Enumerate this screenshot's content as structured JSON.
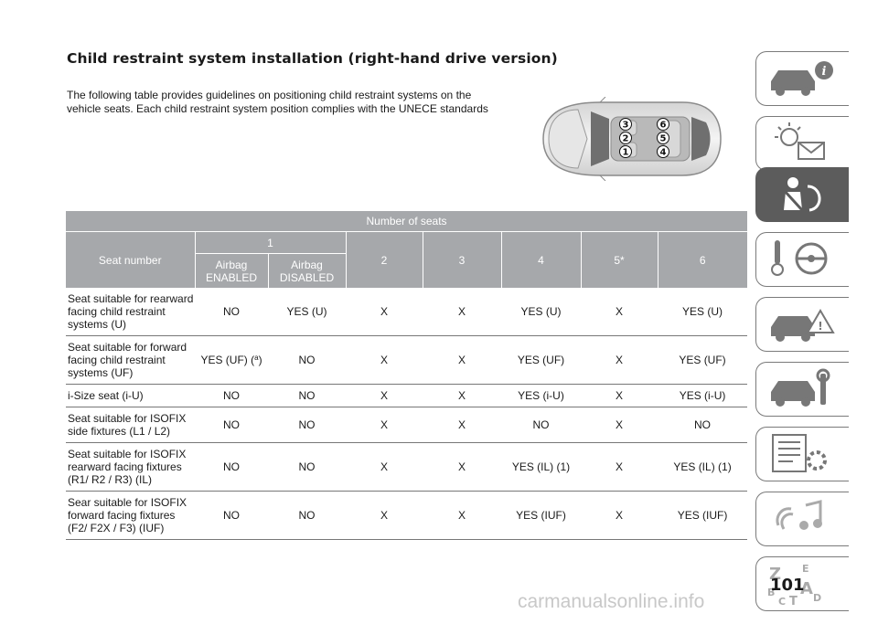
{
  "title": "Child restraint system installation (right-hand drive version)",
  "intro": "The following table provides guidelines on positioning child restraint systems on the vehicle seats. Each child restraint system position complies with the UNECE standards",
  "car_diagram": {
    "seat_labels": [
      "3",
      "6",
      "2",
      "5",
      "1",
      "4"
    ]
  },
  "table": {
    "header_group": "Number of seats",
    "seat_number_label": "Seat number",
    "seat1_label": "1",
    "airbag_enabled": "Airbag ENABLED",
    "airbag_disabled": "Airbag DISABLED",
    "col2": "2",
    "col3": "3",
    "col4": "4",
    "col5": "5*",
    "col6": "6",
    "rows": [
      {
        "label": "Seat suitable for rearward facing child restraint systems (U)",
        "enabled": "NO",
        "disabled": "YES (U)",
        "c2": "X",
        "c3": "X",
        "c4": "YES (U)",
        "c5": "X",
        "c6": "YES (U)"
      },
      {
        "label": "Seat suitable for forward facing child restraint systems (UF)",
        "enabled": "YES (UF) (",
        "enabled_sup": "a",
        "enabled_end": ")",
        "disabled": "NO",
        "c2": "X",
        "c3": "X",
        "c4": "YES (UF)",
        "c5": "X",
        "c6": "YES (UF)"
      },
      {
        "label": "i-Size seat (i-U)",
        "enabled": "NO",
        "disabled": "NO",
        "c2": "X",
        "c3": "X",
        "c4": "YES (i-U)",
        "c5": "X",
        "c6": "YES (i-U)"
      },
      {
        "label": "Seat suitable for ISOFIX side fixtures (L1 / L2)",
        "enabled": "NO",
        "disabled": "NO",
        "c2": "X",
        "c3": "X",
        "c4": "NO",
        "c5": "X",
        "c6": "NO"
      },
      {
        "label": "Seat suitable for ISOFIX rearward facing fixtures (R1/ R2 / R3) (IL)",
        "enabled": "NO",
        "disabled": "NO",
        "c2": "X",
        "c3": "X",
        "c4": "YES (IL) (1)",
        "c5": "X",
        "c6": "YES (IL) (1)"
      },
      {
        "label": "Sear suitable for ISOFIX forward facing fixtures (F2/ F2X / F3) (IUF)",
        "enabled": "NO",
        "disabled": "NO",
        "c2": "X",
        "c3": "X",
        "c4": "YES (IUF)",
        "c5": "X",
        "c6": "YES (IUF)"
      }
    ]
  },
  "side_tabs": [
    {
      "icon": "car-info-icon",
      "active": false
    },
    {
      "icon": "dashboard-lights-icon",
      "active": false
    },
    {
      "icon": "seatbelt-airbag-icon",
      "active": true
    },
    {
      "icon": "steering-key-icon",
      "active": false
    },
    {
      "icon": "car-breakdown-icon",
      "active": false
    },
    {
      "icon": "car-maintenance-icon",
      "active": false
    },
    {
      "icon": "technical-data-icon",
      "active": false
    },
    {
      "icon": "multimedia-icon",
      "active": false
    },
    {
      "icon": "index-letters-icon",
      "active": false
    }
  ],
  "side_tab_index_letters": [
    "Z",
    "E",
    "B",
    "A",
    "D",
    "C",
    "T"
  ],
  "page_number": "101",
  "watermark": "carmanualsonline.info",
  "colors": {
    "header_gray": "#a6a8ab",
    "active_tab": "#5c5c5c",
    "tab_border": "#7a7a7a"
  }
}
